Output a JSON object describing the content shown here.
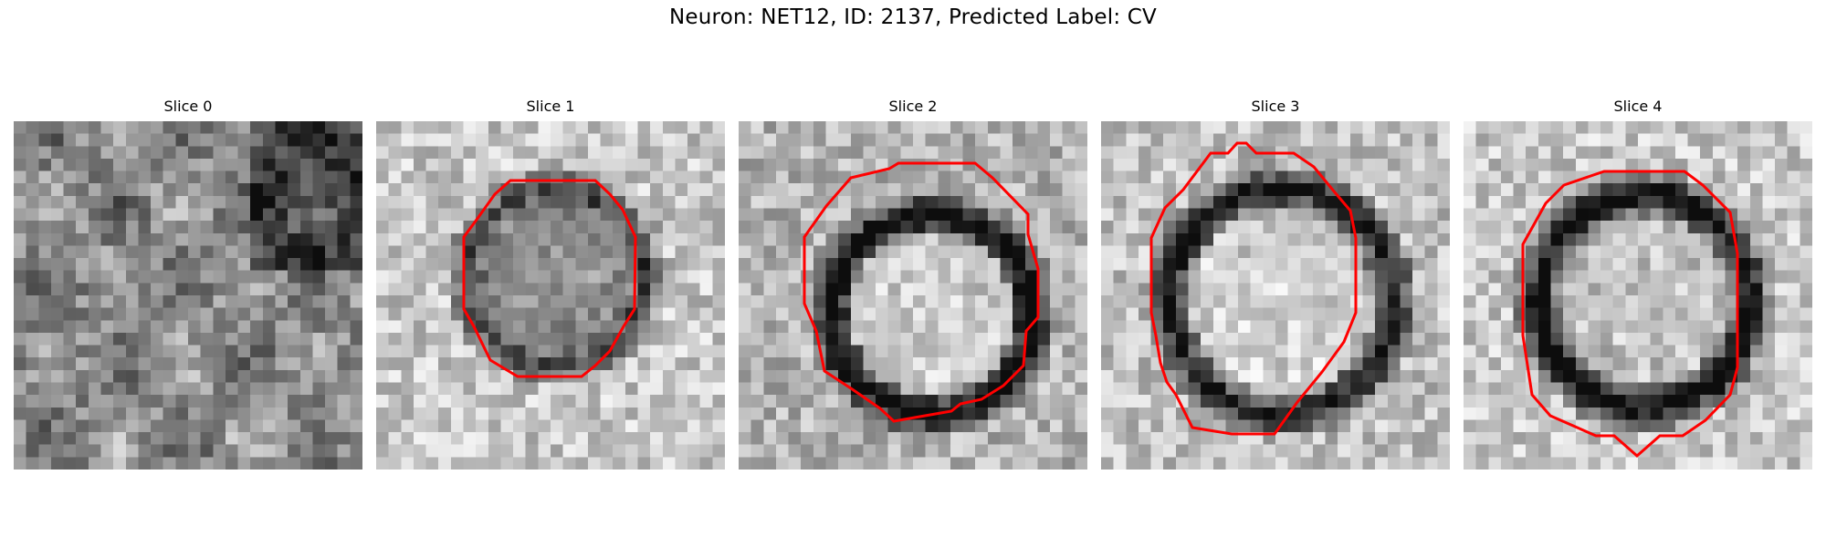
{
  "figure": {
    "title": "Neuron: NET12, ID: 2137, Predicted Label: CV"
  },
  "slices": [
    {
      "title": "Slice 0",
      "has_contour": false
    },
    {
      "title": "Slice 1",
      "has_contour": true
    },
    {
      "title": "Slice 2",
      "has_contour": true
    },
    {
      "title": "Slice 3",
      "has_contour": true
    },
    {
      "title": "Slice 4",
      "has_contour": true
    }
  ],
  "colors": {
    "contour": "#ff0000",
    "background": "#ffffff",
    "colormap": "gray"
  }
}
